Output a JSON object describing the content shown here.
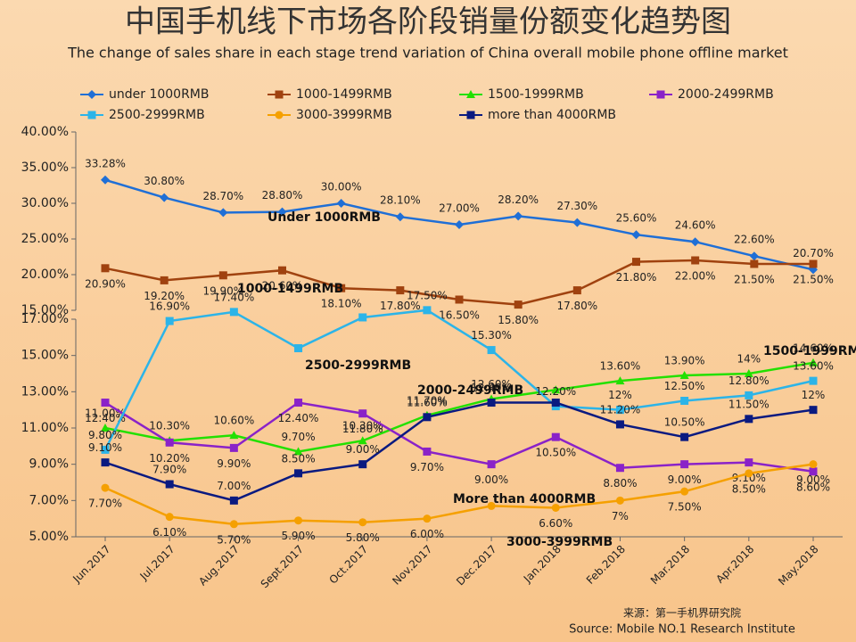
{
  "title": "中国手机线下市场各阶段销量份额变化趋势图",
  "subtitle": "The change of sales share in each stage trend variation of China overall mobile phone offline market",
  "source": [
    "来源：第一手机界研究院",
    "Source: Mobile NO.1 Research Institute"
  ],
  "chart_data": [
    {
      "type": "line",
      "categories": [
        null,
        null,
        null,
        null,
        null,
        null,
        null,
        null,
        null,
        null,
        null,
        null,
        null
      ],
      "ylim": [
        15,
        40
      ],
      "yticks": [
        {
          "value": 15,
          "label": "15.00%"
        },
        {
          "value": 20,
          "label": "20.00%"
        },
        {
          "value": 25,
          "label": "25.00%"
        },
        {
          "value": 30,
          "label": "30.00%"
        },
        {
          "value": 35,
          "label": "35.00%"
        },
        {
          "value": 40,
          "label": "40.00%"
        }
      ],
      "annotations": [
        "Under 1000RMB",
        "1000-1499RMB"
      ],
      "series": [
        {
          "name": "under 1000RMB",
          "color": "#1f6fd6",
          "marker": "diamond",
          "values": [
            33.28,
            30.8,
            28.7,
            28.8,
            30.0,
            28.1,
            27.0,
            28.2,
            27.3,
            25.6,
            24.6,
            22.6,
            20.7
          ],
          "value_labels": [
            "33.28%",
            "30.80%",
            "28.70%",
            "28.80%",
            "30.00%",
            "28.10%",
            "27.00%",
            "28.20%",
            "27.30%",
            "25.60%",
            "24.60%",
            "22.60%",
            "20.70%"
          ]
        },
        {
          "name": "1000-1499RMB",
          "color": "#a0420f",
          "marker": "square",
          "values": [
            20.9,
            19.2,
            19.9,
            20.6,
            18.1,
            17.8,
            16.5,
            15.8,
            17.8,
            21.8,
            22.0,
            21.5,
            21.5
          ],
          "value_labels": [
            "20.90%",
            "19.20%",
            "19.90%",
            "20.60%",
            "18.10%",
            "17.80%",
            "16.50%",
            "15.80%",
            "17.80%",
            "21.80%",
            "22.00%",
            "21.50%",
            "21.50%"
          ]
        }
      ]
    },
    {
      "type": "line",
      "categories": [
        "Jun.2017",
        "Jul.2017",
        "Aug.2017",
        "Sept.2017",
        "Oct.2017",
        "Nov.2017",
        "Dec.2017",
        "Jan.2018",
        "Feb.2018",
        "Mar.2018",
        "Apr.2018",
        "May.2018"
      ],
      "ylim": [
        5,
        17
      ],
      "yticks": [
        {
          "value": 5,
          "label": "5.00%"
        },
        {
          "value": 7,
          "label": "7.00%"
        },
        {
          "value": 9,
          "label": "9.00%"
        },
        {
          "value": 11,
          "label": "11.00%"
        },
        {
          "value": 13,
          "label": "13.00%"
        },
        {
          "value": 15,
          "label": "15.00%"
        },
        {
          "value": 17,
          "label": "17.00%"
        }
      ],
      "annotations": [
        "2500-2999RMB",
        "2000-2499RMB",
        "1500-1999RMB",
        "More than 4000RMB",
        "3000-3999RMB"
      ],
      "series": [
        {
          "name": "1500-1999RMB",
          "color": "#22e000",
          "marker": "triangle",
          "values": [
            11.0,
            10.3,
            10.6,
            9.7,
            10.3,
            11.7,
            12.6,
            13.1,
            13.6,
            13.9,
            14.0,
            14.6
          ],
          "value_labels": [
            "11.00%",
            "10.30%",
            "10.60%",
            "9.70%",
            "10.30%",
            "11.70%",
            "12.60%",
            null,
            "13.60%",
            "13.90%",
            "14%",
            "14.60%"
          ]
        },
        {
          "name": "2000-2499RMB",
          "color": "#8a22c8",
          "marker": "square",
          "values": [
            12.4,
            10.2,
            9.9,
            12.4,
            11.8,
            9.7,
            9.0,
            10.5,
            8.8,
            9.0,
            9.1,
            8.6
          ],
          "value_labels": [
            "12.40%",
            "10.20%",
            "9.90%",
            "12.40%",
            "11.80%",
            "9.70%",
            "9.00%",
            "10.50%",
            "8.80%",
            "9.00%",
            "9.10%",
            "8.60%"
          ]
        },
        {
          "name": "2500-2999RMB",
          "color": "#2cb4e8",
          "marker": "square",
          "values": [
            9.8,
            16.9,
            17.4,
            15.4,
            17.1,
            17.5,
            15.3,
            12.2,
            12.0,
            12.5,
            12.8,
            13.6
          ],
          "value_labels": [
            "9.80%",
            "16.90%",
            "17.40%",
            null,
            null,
            "17.50%",
            "15.30%",
            "12.20%",
            "12%",
            "12.50%",
            "12.80%",
            "13.60%"
          ]
        },
        {
          "name": "3000-3999RMB",
          "color": "#f5a000",
          "marker": "circle",
          "values": [
            7.7,
            6.1,
            5.7,
            5.9,
            5.8,
            6.0,
            6.7,
            6.6,
            7.0,
            7.5,
            8.5,
            9.0
          ],
          "value_labels": [
            "7.70%",
            "6.10%",
            "5.70%",
            "5.90%",
            "5.80%",
            "6.00%",
            null,
            "6.60%",
            "7%",
            "7.50%",
            "8.50%",
            "9.00%"
          ]
        },
        {
          "name": "more than 4000RMB",
          "color": "#0a1a80",
          "marker": "square",
          "values": [
            9.1,
            7.9,
            7.0,
            8.5,
            9.0,
            11.6,
            12.4,
            12.4,
            11.2,
            10.5,
            11.5,
            12.0
          ],
          "value_labels": [
            "9.10%",
            "7.90%",
            "7.00%",
            "8.50%",
            "9.00%",
            "11.60%",
            "12.40%",
            null,
            "11.20%",
            "10.50%",
            "11.50%",
            "12%"
          ]
        }
      ]
    }
  ]
}
